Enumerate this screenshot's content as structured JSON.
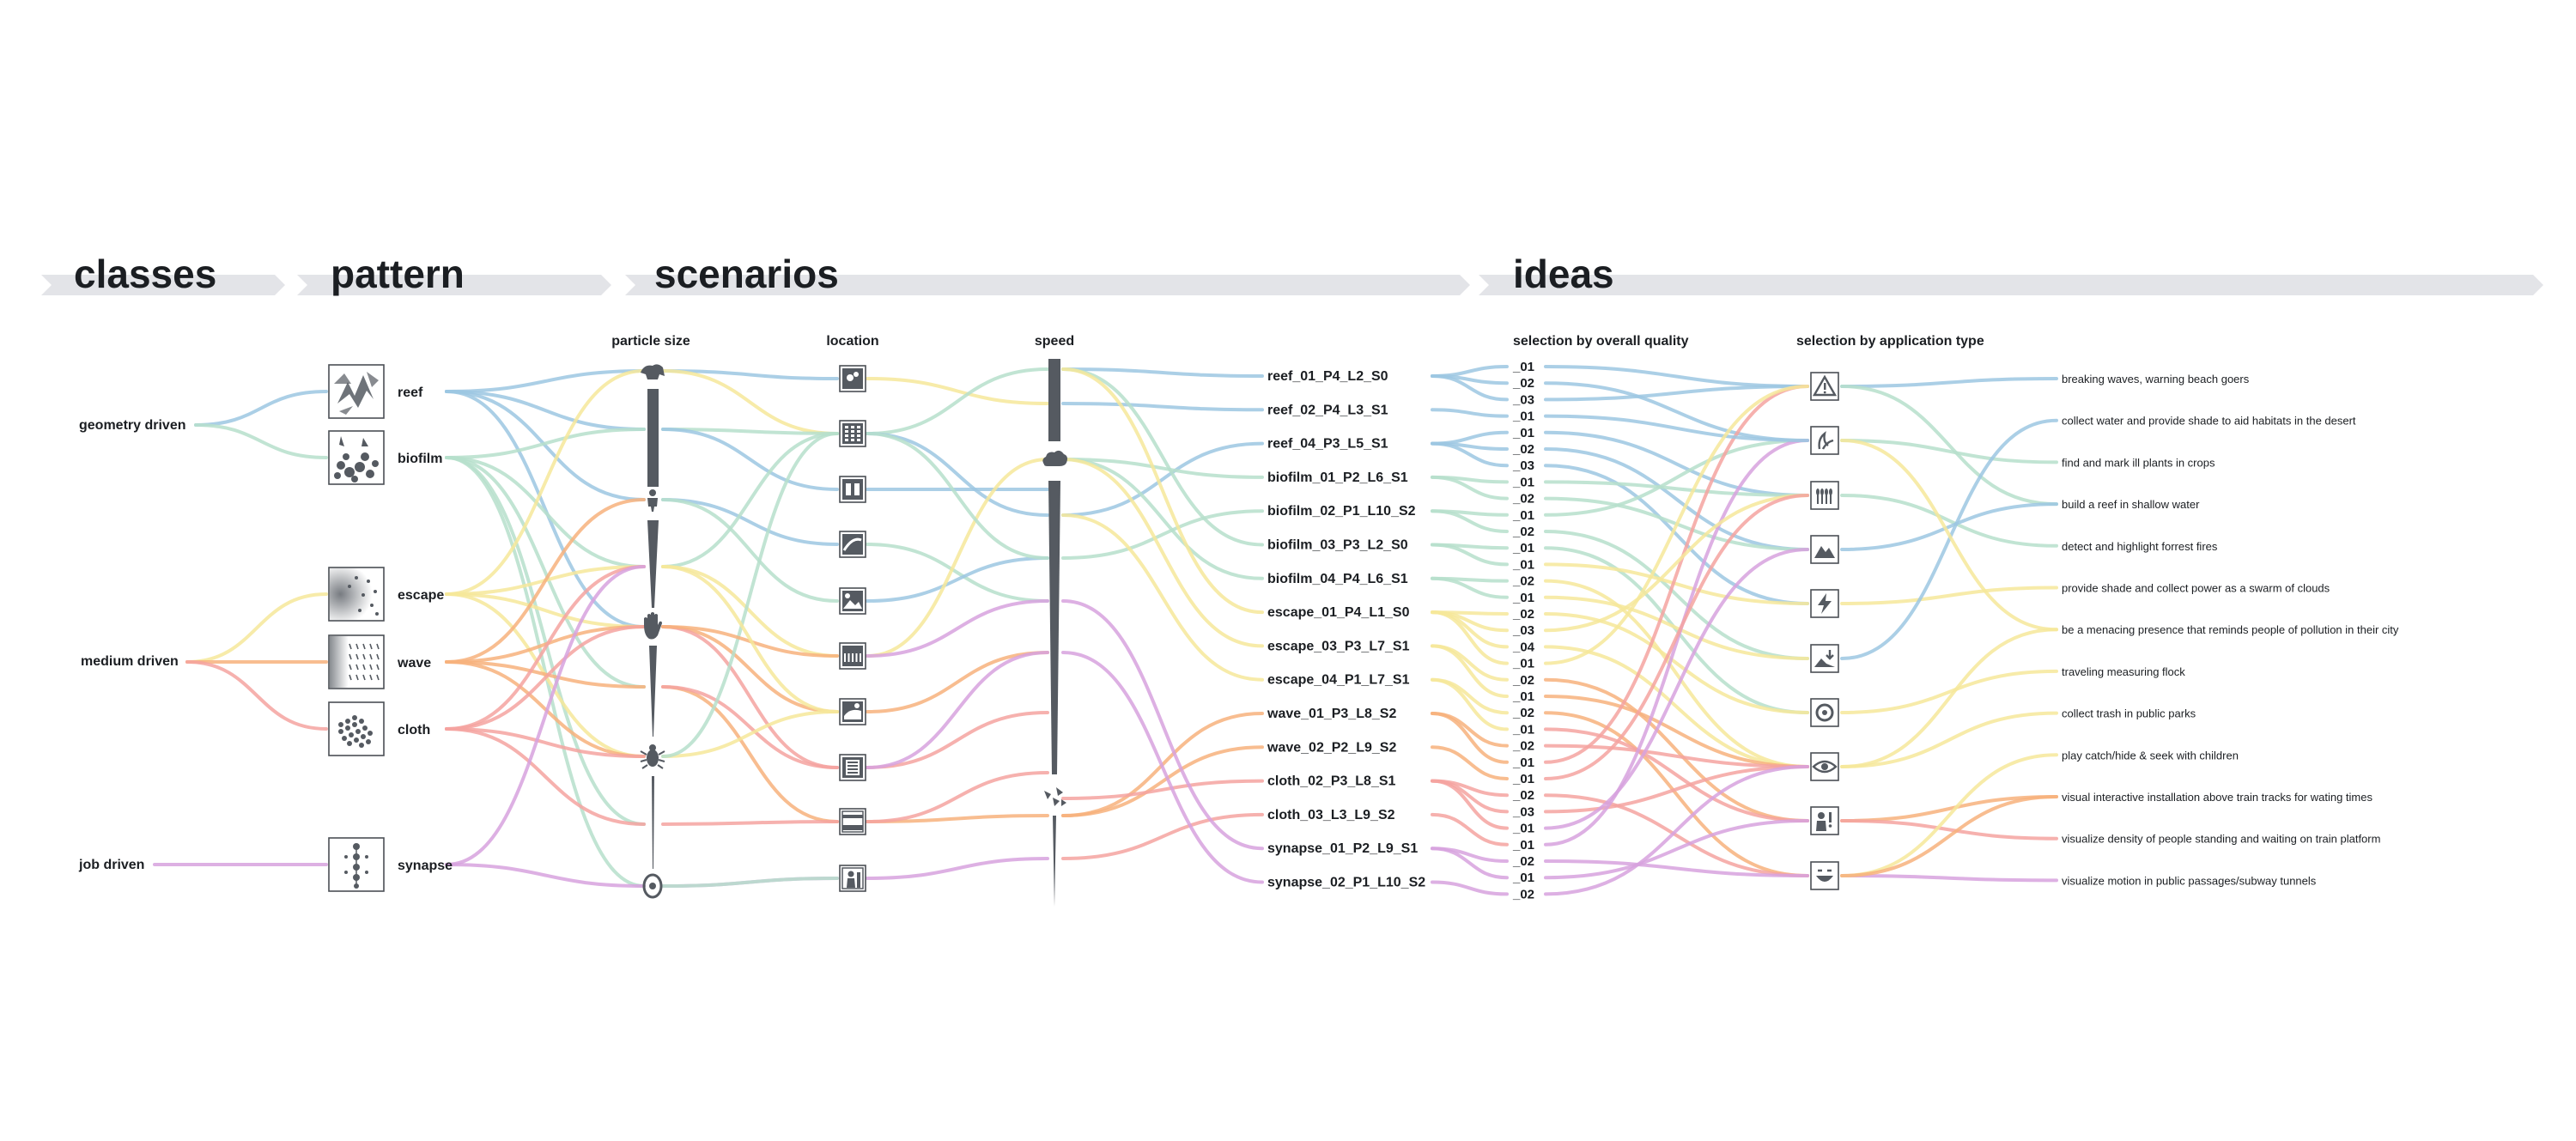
{
  "colors": {
    "reef": "#9cc7e2",
    "biofilm": "#b6dfcb",
    "escape": "#f6e79a",
    "wave": "#f7b27c",
    "cloth": "#f4a3a0",
    "synapse": "#d7a2de",
    "banner": "#e3e4e8",
    "glyph": "#555a61"
  },
  "banners": [
    {
      "key": "classes",
      "title": "classes"
    },
    {
      "key": "pattern",
      "title": "pattern"
    },
    {
      "key": "scenarios",
      "title": "scenarios"
    },
    {
      "key": "ideas",
      "title": "ideas"
    }
  ],
  "column_titles": {
    "particle_size": "particle size",
    "location": "location",
    "speed": "speed",
    "quality": "selection by overall quality",
    "application": "selection by application type"
  },
  "classes": [
    {
      "id": "geometry",
      "label": "geometry driven"
    },
    {
      "id": "medium",
      "label": "medium driven"
    },
    {
      "id": "job",
      "label": "job driven"
    }
  ],
  "patterns": [
    {
      "id": "reef",
      "label": "reef",
      "class": "geometry",
      "icon": "reef-pattern-icon"
    },
    {
      "id": "biofilm",
      "label": "biofilm",
      "class": "geometry",
      "icon": "biofilm-pattern-icon"
    },
    {
      "id": "escape",
      "label": "escape",
      "class": "medium",
      "icon": "escape-pattern-icon"
    },
    {
      "id": "wave",
      "label": "wave",
      "class": "medium",
      "icon": "wave-pattern-icon"
    },
    {
      "id": "cloth",
      "label": "cloth",
      "class": "medium",
      "icon": "cloth-pattern-icon"
    },
    {
      "id": "synapse",
      "label": "synapse",
      "class": "job",
      "icon": "synapse-pattern-icon"
    }
  ],
  "particle_size_icons": [
    "animal-icon",
    "person-icon",
    "hand-icon",
    "bug-icon",
    "cell-icon"
  ],
  "location_icons": [
    "sky-icon",
    "building-icon",
    "train-icon",
    "road-icon",
    "landscape-icon",
    "field-icon",
    "park-icon",
    "tunnel-icon",
    "platform-icon",
    "indoor-person-icon"
  ],
  "speed_icons": [
    "cloud-icon",
    "bird-swarm-icon"
  ],
  "scenarios": [
    {
      "label": "reef_01_P4_L2_S0",
      "pattern": "reef"
    },
    {
      "label": "reef_02_P4_L3_S1",
      "pattern": "reef"
    },
    {
      "label": "reef_04_P3_L5_S1",
      "pattern": "reef"
    },
    {
      "label": "biofilm_01_P2_L6_S1",
      "pattern": "biofilm"
    },
    {
      "label": "biofilm_02_P1_L10_S2",
      "pattern": "biofilm"
    },
    {
      "label": "biofilm_03_P3_L2_S0",
      "pattern": "biofilm"
    },
    {
      "label": "biofilm_04_P4_L6_S1",
      "pattern": "biofilm"
    },
    {
      "label": "escape_01_P4_L1_S0",
      "pattern": "escape"
    },
    {
      "label": "escape_03_P3_L7_S1",
      "pattern": "escape"
    },
    {
      "label": "escape_04_P1_L7_S1",
      "pattern": "escape"
    },
    {
      "label": "wave_01_P3_L8_S2",
      "pattern": "wave"
    },
    {
      "label": "wave_02_P2_L9_S2",
      "pattern": "wave"
    },
    {
      "label": "cloth_02_P3_L8_S1",
      "pattern": "cloth"
    },
    {
      "label": "cloth_03_L3_L9_S2",
      "pattern": "cloth"
    },
    {
      "label": "synapse_01_P2_L9_S1",
      "pattern": "synapse"
    },
    {
      "label": "synapse_02_P1_L10_S2",
      "pattern": "synapse"
    }
  ],
  "quality_labels": [
    "_01",
    "_02",
    "_03",
    "_01",
    "_01",
    "_02",
    "_03",
    "_01",
    "_02",
    "_01",
    "_02",
    "_01",
    "_01",
    "_02",
    "_01",
    "_02",
    "_03",
    "_04",
    "_01",
    "_02",
    "_01",
    "_02",
    "_01",
    "_02",
    "_01",
    "_01",
    "_02",
    "_03",
    "_01",
    "_01",
    "_02",
    "_01",
    "_02"
  ],
  "application_icons": [
    "warning-icon",
    "plant-scan-icon",
    "crops-icon",
    "mountain-icon",
    "lightning-icon",
    "landscape-arrow-icon",
    "recycle-icon",
    "eye-icon",
    "person-info-icon",
    "face-icon"
  ],
  "ideas": [
    "breaking waves, warning beach goers",
    "collect water and provide shade to aid habitats in the desert",
    "find and mark ill plants in crops",
    "build a reef in shallow water",
    "detect and highlight forrest fires",
    "provide shade and collect power as a swarm of clouds",
    "be a menacing presence that reminds people of pollution in their city",
    "traveling measuring flock",
    "collect trash in public parks",
    "play catch/hide & seek with children",
    "visual interactive installation above train tracks for wating times",
    "visualize density of people standing and waiting on train platform",
    "visualize motion in public passages/subway tunnels"
  ]
}
